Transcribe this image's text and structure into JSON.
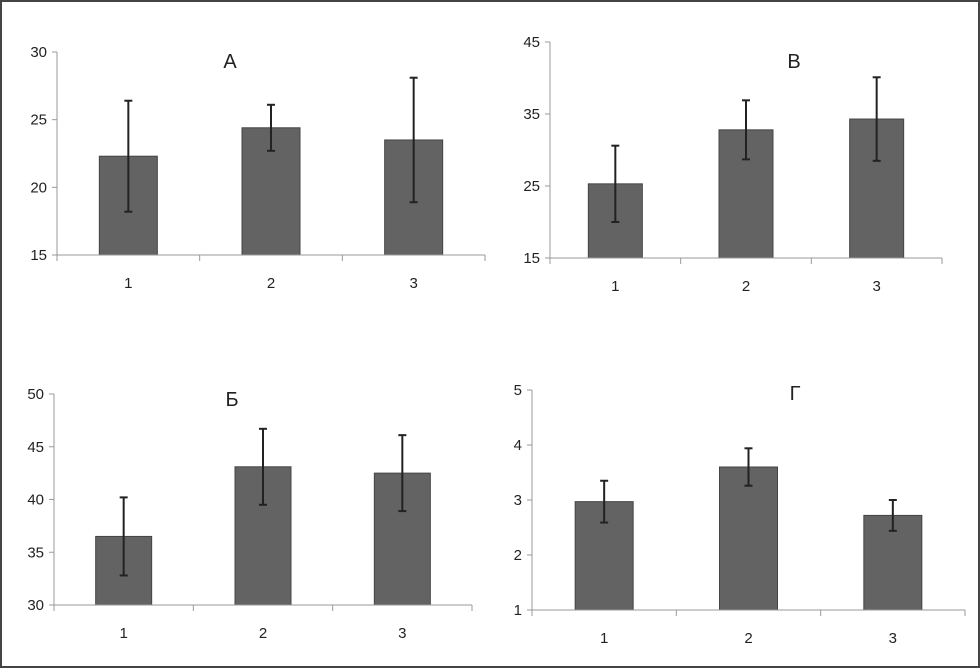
{
  "chart_data": [
    {
      "type": "bar",
      "title": "А",
      "categories": [
        "1",
        "2",
        "3"
      ],
      "values": [
        22.3,
        24.4,
        23.5
      ],
      "errors": [
        4.1,
        1.7,
        4.6
      ],
      "ylim": [
        15,
        30
      ],
      "yticks": [
        15,
        20,
        25,
        30
      ],
      "grid": false,
      "bar_color": "#636363"
    },
    {
      "type": "bar",
      "title": "В",
      "categories": [
        "1",
        "2",
        "3"
      ],
      "values": [
        25.3,
        32.8,
        34.3
      ],
      "errors": [
        5.3,
        4.1,
        5.8
      ],
      "ylim": [
        15,
        45
      ],
      "yticks": [
        15,
        25,
        35,
        45
      ],
      "grid": false,
      "bar_color": "#636363"
    },
    {
      "type": "bar",
      "title": "Б",
      "categories": [
        "1",
        "2",
        "3"
      ],
      "values": [
        36.5,
        43.1,
        42.5
      ],
      "errors": [
        3.7,
        3.6,
        3.6
      ],
      "ylim": [
        30,
        50
      ],
      "yticks": [
        30,
        35,
        40,
        45,
        50
      ],
      "grid": false,
      "bar_color": "#636363"
    },
    {
      "type": "bar",
      "title": "Г",
      "categories": [
        "1",
        "2",
        "3"
      ],
      "values": [
        2.97,
        3.6,
        2.72
      ],
      "errors": [
        0.38,
        0.34,
        0.28
      ],
      "ylim": [
        1,
        5
      ],
      "yticks": [
        1,
        2,
        3,
        4,
        5
      ],
      "grid": false,
      "bar_color": "#636363"
    }
  ]
}
